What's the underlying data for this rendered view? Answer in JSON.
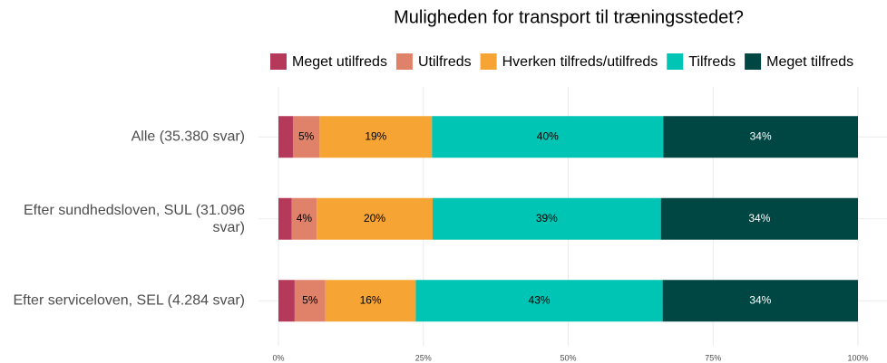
{
  "chart_data": {
    "type": "stacked-bar-horizontal",
    "title": "Muligheden for transport til træningsstedet?",
    "categories": [
      "Alle (35.380 svar)",
      "Efter sundhedsloven, SUL (31.096 svar)",
      "Efter serviceloven, SEL (4.284 svar)"
    ],
    "series": [
      {
        "name": "Meget utilfreds",
        "color": "#b5395a",
        "values": [
          2.5,
          2.3,
          2.8
        ],
        "value_labels": [
          null,
          null,
          null
        ]
      },
      {
        "name": "Utilfreds",
        "color": "#e0826a",
        "values": [
          4.6,
          4.3,
          5.3
        ],
        "value_labels": [
          "5%",
          "4%",
          "5%"
        ]
      },
      {
        "name": "Hverken tilfreds/utilfreds",
        "color": "#f6a534",
        "values": [
          19.4,
          20.0,
          15.6
        ],
        "value_labels": [
          "19%",
          "20%",
          "16%"
        ]
      },
      {
        "name": "Tilfreds",
        "color": "#00c4b4",
        "values": [
          39.9,
          39.4,
          42.6
        ],
        "value_labels": [
          "40%",
          "39%",
          "43%"
        ]
      },
      {
        "name": "Meget tilfreds",
        "color": "#004643",
        "values": [
          33.6,
          34.0,
          33.7
        ],
        "value_labels": [
          "34%",
          "34%",
          "34%"
        ]
      }
    ],
    "xlim": [
      0,
      100
    ],
    "xticks": [
      {
        "value": 0,
        "label": "0%"
      },
      {
        "value": 25,
        "label": "25%"
      },
      {
        "value": 50,
        "label": "50%"
      },
      {
        "value": 75,
        "label": "75%"
      },
      {
        "value": 100,
        "label": "100%"
      }
    ],
    "grid": true,
    "legend": "top"
  }
}
